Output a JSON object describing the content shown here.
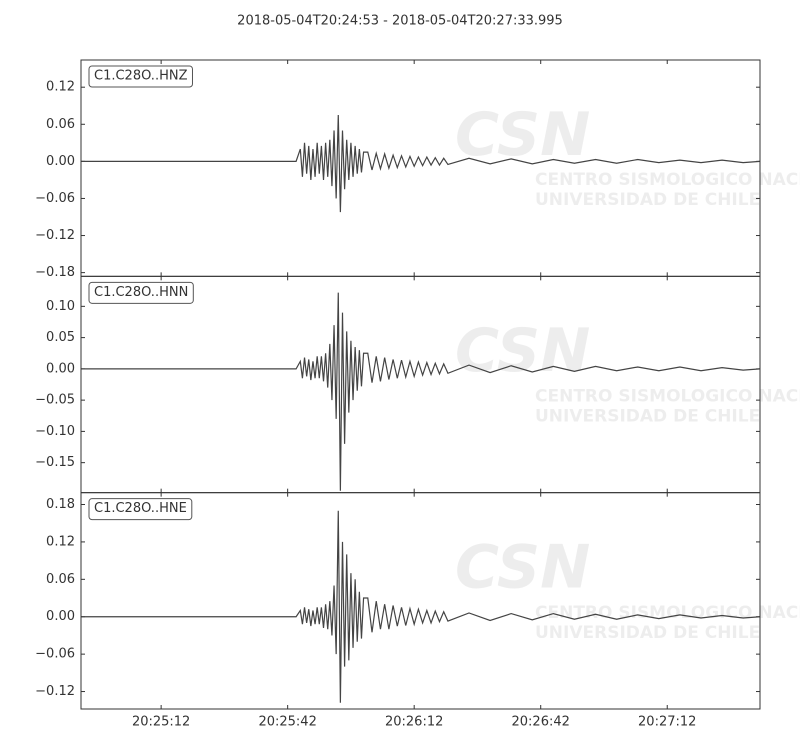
{
  "chart_data": {
    "type": "line",
    "title": "2018-05-04T20:24:53  -  2018-05-04T20:27:33.995",
    "x": [
      "20:24:53",
      "20:25:44",
      "20:25:45",
      "20:25:45.5",
      "20:25:46",
      "20:25:46.5",
      "20:25:47",
      "20:25:47.5",
      "20:25:48",
      "20:25:48.5",
      "20:25:49",
      "20:25:49.5",
      "20:25:50",
      "20:25:50.5",
      "20:25:51",
      "20:25:51.5",
      "20:25:52",
      "20:25:52.5",
      "20:25:53",
      "20:25:53.5",
      "20:25:54",
      "20:25:54.5",
      "20:25:55",
      "20:25:55.5",
      "20:25:56",
      "20:25:56.5",
      "20:25:57",
      "20:25:57.5",
      "20:25:58",
      "20:25:58.5",
      "20:25:59",
      "20:25:59.5",
      "20:26:00",
      "20:26:01",
      "20:26:02",
      "20:26:03",
      "20:26:04",
      "20:26:05",
      "20:26:06",
      "20:26:07",
      "20:26:08",
      "20:26:09",
      "20:26:10",
      "20:26:11",
      "20:26:12",
      "20:26:13",
      "20:26:14",
      "20:26:15",
      "20:26:16",
      "20:26:17",
      "20:26:18",
      "20:26:19",
      "20:26:20",
      "20:26:25",
      "20:26:30",
      "20:26:35",
      "20:26:40",
      "20:26:45",
      "20:26:50",
      "20:26:55",
      "20:27:00",
      "20:27:05",
      "20:27:10",
      "20:27:15",
      "20:27:20",
      "20:27:25",
      "20:27:30",
      "20:27:33.995"
    ],
    "xlim": [
      "2018-05-04T20:24:53",
      "2018-05-04T20:27:33.995"
    ],
    "xticks": [
      "20:25:12",
      "20:25:42",
      "20:26:12",
      "20:26:42",
      "20:27:12"
    ],
    "series": [
      {
        "name": "C1.C28O..HNZ",
        "color": "#444444",
        "ylim": [
          -0.186,
          0.164
        ],
        "yticks": [
          {
            "value": -0.18,
            "label": "−0.18"
          },
          {
            "value": -0.12,
            "label": "−0.12"
          },
          {
            "value": -0.06,
            "label": "−0.06"
          },
          {
            "value": 0,
            "label": "0.00"
          },
          0.06,
          0.12
        ],
        "values": [
          0,
          0,
          0.02,
          -0.025,
          0.03,
          -0.02,
          0.025,
          -0.03,
          0.02,
          -0.025,
          0.03,
          -0.02,
          0.025,
          -0.03,
          0.03,
          -0.025,
          0.035,
          -0.04,
          0.05,
          -0.06,
          0.075,
          -0.082,
          0.05,
          -0.045,
          0.035,
          -0.03,
          0.03,
          -0.025,
          0.025,
          -0.02,
          0.02,
          -0.018,
          0.015,
          0.015,
          -0.014,
          0.013,
          -0.012,
          0.012,
          -0.011,
          0.01,
          -0.01,
          0.009,
          -0.009,
          0.008,
          -0.008,
          0.007,
          -0.007,
          0.007,
          -0.006,
          0.006,
          -0.006,
          0.005,
          -0.005,
          0.005,
          -0.004,
          0.004,
          -0.004,
          0.003,
          -0.003,
          0.003,
          -0.003,
          0.003,
          -0.002,
          0.002,
          -0.002,
          0.002,
          -0.002,
          0
        ]
      },
      {
        "name": "C1.C28O..HNN",
        "color": "#444444",
        "ylim": [
          -0.198,
          0.148
        ],
        "yticks": [
          {
            "value": -0.15,
            "label": "−0.15"
          },
          {
            "value": -0.1,
            "label": "−0.10"
          },
          {
            "value": -0.05,
            "label": "−0.05"
          },
          {
            "value": 0,
            "label": "0.00"
          },
          0.05,
          {
            "value": 0.1,
            "label": "0.10"
          }
        ],
        "values": [
          0,
          0,
          0.012,
          -0.015,
          0.018,
          -0.012,
          0.015,
          -0.018,
          0.012,
          -0.015,
          0.02,
          -0.015,
          0.02,
          -0.02,
          0.025,
          -0.03,
          0.04,
          -0.05,
          0.07,
          -0.08,
          0.122,
          -0.195,
          0.09,
          -0.12,
          0.06,
          -0.07,
          0.045,
          -0.05,
          0.035,
          -0.035,
          0.03,
          -0.028,
          0.025,
          0.025,
          -0.022,
          0.02,
          -0.02,
          0.018,
          -0.017,
          0.015,
          -0.015,
          0.014,
          -0.013,
          0.012,
          -0.012,
          0.011,
          -0.01,
          0.01,
          -0.009,
          0.009,
          -0.008,
          0.008,
          -0.007,
          0.006,
          -0.006,
          0.005,
          -0.005,
          0.004,
          -0.004,
          0.004,
          -0.003,
          0.003,
          -0.003,
          0.003,
          -0.003,
          0.002,
          -0.002,
          0
        ]
      },
      {
        "name": "C1.C28O..HNE",
        "color": "#444444",
        "ylim": [
          -0.148,
          0.199
        ],
        "yticks": [
          {
            "value": -0.12,
            "label": "−0.12"
          },
          {
            "value": -0.06,
            "label": "−0.06"
          },
          {
            "value": 0,
            "label": "0.00"
          },
          0.06,
          0.12,
          0.18
        ],
        "values": [
          0,
          0,
          0.01,
          -0.012,
          0.015,
          -0.01,
          0.012,
          -0.015,
          0.01,
          -0.012,
          0.015,
          -0.012,
          0.015,
          -0.018,
          0.02,
          -0.02,
          0.025,
          -0.03,
          0.05,
          -0.06,
          0.17,
          -0.138,
          0.12,
          -0.08,
          0.1,
          -0.07,
          0.07,
          -0.05,
          0.06,
          -0.04,
          0.04,
          -0.035,
          0.03,
          0.03,
          -0.025,
          0.025,
          -0.02,
          0.02,
          -0.02,
          0.018,
          -0.015,
          0.015,
          -0.014,
          0.013,
          -0.012,
          0.012,
          -0.01,
          0.01,
          -0.01,
          0.009,
          -0.008,
          0.008,
          -0.007,
          0.006,
          -0.006,
          0.005,
          -0.005,
          0.005,
          -0.004,
          0.004,
          -0.004,
          0.003,
          -0.003,
          0.003,
          -0.002,
          0.002,
          -0.002,
          0
        ]
      }
    ],
    "watermark": [
      "CSN",
      "CENTRO SISMOLOGICO NACIONAL",
      "UNIVERSIDAD DE CHILE"
    ]
  }
}
